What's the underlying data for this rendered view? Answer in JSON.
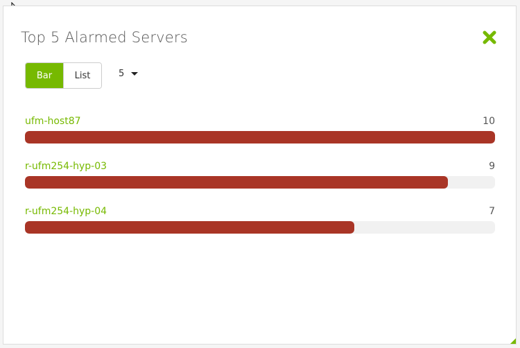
{
  "widget": {
    "title": "Top 5 Alarmed Servers",
    "close_icon": "close-x-icon",
    "view_toggle": [
      {
        "label": "Bar",
        "active": true
      },
      {
        "label": "List",
        "active": false
      }
    ],
    "count_select": "5"
  },
  "colors": {
    "accent": "#76b900",
    "bar": "#a93526",
    "track": "#f1f1f1"
  },
  "chart_data": {
    "type": "bar",
    "orientation": "horizontal",
    "max": 10,
    "categories": [
      "ufm-host87",
      "r-ufm254-hyp-03",
      "r-ufm254-hyp-04"
    ],
    "values": [
      10,
      9,
      7
    ]
  }
}
